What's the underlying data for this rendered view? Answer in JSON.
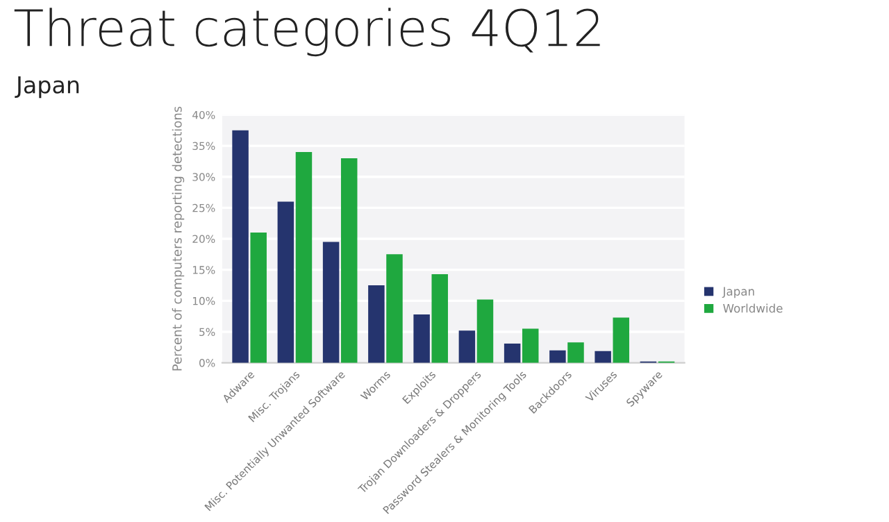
{
  "chart_data": {
    "type": "bar",
    "title": "Threat categories 4Q12",
    "subtitle": "Japan",
    "ylabel": "Percent of computers reporting detections",
    "categories": [
      "Adware",
      "Misc. Trojans",
      "Misc. Potentially Unwanted Software",
      "Worms",
      "Exploits",
      "Trojan Downloaders & Droppers",
      "Password Stealers & Monitoring Tools",
      "Backdoors",
      "Viruses",
      "Spyware"
    ],
    "series": [
      {
        "name": "Japan",
        "color": "#25346e",
        "values": [
          37.5,
          26,
          19.5,
          12.5,
          7.8,
          5.2,
          3.1,
          2.0,
          1.9,
          0.2
        ]
      },
      {
        "name": "Worldwide",
        "color": "#1fa83f",
        "values": [
          21,
          34,
          33,
          17.5,
          14.3,
          10.2,
          5.5,
          3.3,
          7.3,
          0.2
        ]
      }
    ],
    "ylim": [
      0,
      40
    ],
    "yticks": [
      {
        "value": 0,
        "label": "0%"
      },
      {
        "value": 5,
        "label": "5%"
      },
      {
        "value": 10,
        "label": "10%"
      },
      {
        "value": 15,
        "label": "15%"
      },
      {
        "value": 20,
        "label": "20%"
      },
      {
        "value": 25,
        "label": "25%"
      },
      {
        "value": 30,
        "label": "30%"
      },
      {
        "value": 35,
        "label": "35%"
      },
      {
        "value": 40,
        "label": "40%"
      }
    ],
    "grid": "y",
    "legend": "right"
  }
}
